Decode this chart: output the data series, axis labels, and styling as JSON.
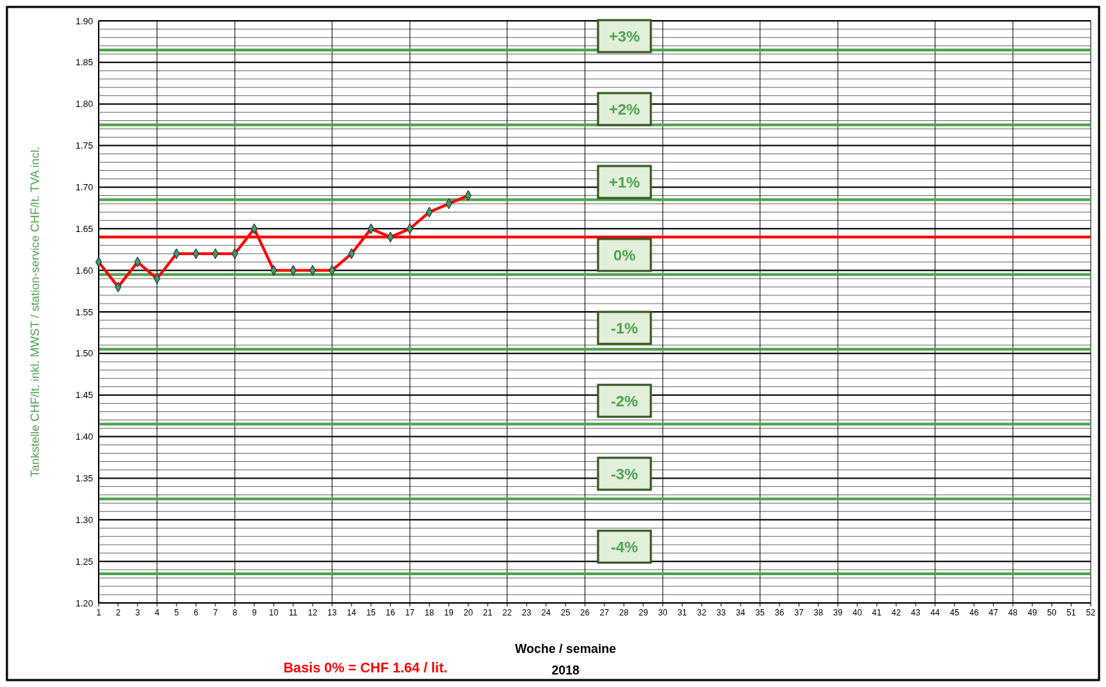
{
  "chart_data": {
    "type": "line",
    "xlabel": "Woche / semaine",
    "ylabel": "Tankstelle CHF/lt. inkl. MWST  /  station-service CHF/lt. TVA incl.",
    "x": [
      1,
      2,
      3,
      4,
      5,
      6,
      7,
      8,
      9,
      10,
      11,
      12,
      13,
      14,
      15,
      16,
      17,
      18,
      19,
      20
    ],
    "series": [
      {
        "color": "#ff0000",
        "colors": [
          "#3c9a6e",
          "#3c9a6e",
          "#3c9a6e",
          "#3c9a6e",
          "#3c9a6e",
          "#3c9a6e",
          "#3c9a6e",
          "#3c9a6e",
          "#3c9a6e",
          "#3c9a6e",
          "#3c9a6e",
          "#3c9a6e",
          "#3c9a6e",
          "#3c9a6e",
          "#3c9a6e",
          "#3c9a6e",
          "#3c9a6e",
          "#3c9a6e",
          "#3c9a6e",
          "#3c9a6e"
        ],
        "values": [
          1.61,
          1.58,
          1.61,
          1.59,
          1.62,
          1.62,
          1.62,
          1.62,
          1.65,
          1.6,
          1.6,
          1.6,
          1.6,
          1.62,
          1.65,
          1.64,
          1.65,
          1.67,
          1.68,
          1.69
        ]
      }
    ],
    "marker": "diamond",
    "line_style": "solid",
    "grid": true,
    "xlim": [
      1,
      52
    ],
    "xticks": [
      1,
      2,
      3,
      4,
      5,
      6,
      7,
      8,
      9,
      10,
      11,
      12,
      13,
      14,
      15,
      16,
      17,
      18,
      19,
      20,
      21,
      22,
      23,
      24,
      25,
      26,
      27,
      28,
      29,
      30,
      31,
      32,
      33,
      34,
      35,
      36,
      37,
      38,
      39,
      40,
      41,
      42,
      43,
      44,
      45,
      46,
      47,
      48,
      49,
      50,
      51,
      52
    ],
    "ylim": [
      1.2,
      1.9
    ],
    "yticks": [
      {
        "value": 1.2,
        "label": "1.20"
      },
      {
        "value": 1.21,
        "label": null
      },
      {
        "value": 1.22,
        "label": null
      },
      {
        "value": 1.23,
        "label": null
      },
      {
        "value": 1.24,
        "label": null
      },
      {
        "value": 1.25,
        "label": "1.25"
      },
      {
        "value": 1.26,
        "label": null
      },
      {
        "value": 1.27,
        "label": null
      },
      {
        "value": 1.28,
        "label": null
      },
      {
        "value": 1.29,
        "label": null
      },
      {
        "value": 1.3,
        "label": "1.30"
      },
      {
        "value": 1.31,
        "label": null
      },
      {
        "value": 1.32,
        "label": null
      },
      {
        "value": 1.33,
        "label": null
      },
      {
        "value": 1.34,
        "label": null
      },
      {
        "value": 1.35,
        "label": "1.35"
      },
      {
        "value": 1.36,
        "label": null
      },
      {
        "value": 1.37,
        "label": null
      },
      {
        "value": 1.38,
        "label": null
      },
      {
        "value": 1.39,
        "label": null
      },
      {
        "value": 1.4,
        "label": "1.40"
      },
      {
        "value": 1.41,
        "label": null
      },
      {
        "value": 1.42,
        "label": null
      },
      {
        "value": 1.43,
        "label": null
      },
      {
        "value": 1.44,
        "label": null
      },
      {
        "value": 1.45,
        "label": "1.45"
      },
      {
        "value": 1.46,
        "label": null
      },
      {
        "value": 1.47,
        "label": null
      },
      {
        "value": 1.48,
        "label": null
      },
      {
        "value": 1.49,
        "label": null
      },
      {
        "value": 1.5,
        "label": "1.50"
      },
      {
        "value": 1.51,
        "label": null
      },
      {
        "value": 1.52,
        "label": null
      },
      {
        "value": 1.53,
        "label": null
      },
      {
        "value": 1.54,
        "label": null
      },
      {
        "value": 1.55,
        "label": "1.55"
      },
      {
        "value": 1.56,
        "label": null
      },
      {
        "value": 1.57,
        "label": null
      },
      {
        "value": 1.58,
        "label": null
      },
      {
        "value": 1.59,
        "label": null
      },
      {
        "value": 1.6,
        "label": "1.60"
      },
      {
        "value": 1.61,
        "label": null
      },
      {
        "value": 1.62,
        "label": null
      },
      {
        "value": 1.63,
        "label": null
      },
      {
        "value": 1.64,
        "label": null
      },
      {
        "value": 1.65,
        "label": "1.65"
      },
      {
        "value": 1.66,
        "label": null
      },
      {
        "value": 1.67,
        "label": null
      },
      {
        "value": 1.68,
        "label": null
      },
      {
        "value": 1.69,
        "label": null
      },
      {
        "value": 1.7,
        "label": "1.70"
      },
      {
        "value": 1.71,
        "label": null
      },
      {
        "value": 1.72,
        "label": null
      },
      {
        "value": 1.73,
        "label": null
      },
      {
        "value": 1.74,
        "label": null
      },
      {
        "value": 1.75,
        "label": "1.75"
      },
      {
        "value": 1.76,
        "label": null
      },
      {
        "value": 1.77,
        "label": null
      },
      {
        "value": 1.78,
        "label": null
      },
      {
        "value": 1.79,
        "label": null
      },
      {
        "value": 1.8,
        "label": "1.80"
      },
      {
        "value": 1.81,
        "label": null
      },
      {
        "value": 1.82,
        "label": null
      },
      {
        "value": 1.83,
        "label": null
      },
      {
        "value": 1.84,
        "label": null
      },
      {
        "value": 1.85,
        "label": "1.85"
      },
      {
        "value": 1.86,
        "label": null
      },
      {
        "value": 1.87,
        "label": null
      },
      {
        "value": 1.88,
        "label": null
      },
      {
        "value": 1.89,
        "label": null
      },
      {
        "value": 1.9,
        "label": "1.90"
      }
    ],
    "ref_lines": [
      {
        "axis": "x",
        "value": 4,
        "color": "#000000"
      },
      {
        "axis": "x",
        "value": 8,
        "color": "#000000"
      },
      {
        "axis": "x",
        "value": 13,
        "color": "#000000"
      },
      {
        "axis": "x",
        "value": 17,
        "color": "#000000"
      },
      {
        "axis": "x",
        "value": 22,
        "color": "#000000"
      },
      {
        "axis": "x",
        "value": 26,
        "color": "#000000"
      },
      {
        "axis": "x",
        "value": 30,
        "color": "#000000"
      },
      {
        "axis": "x",
        "value": 35,
        "color": "#000000"
      },
      {
        "axis": "x",
        "value": 39,
        "color": "#000000"
      },
      {
        "axis": "x",
        "value": 44,
        "color": "#000000"
      },
      {
        "axis": "x",
        "value": 48,
        "color": "#000000"
      },
      {
        "axis": "y",
        "value": 1.865,
        "color": "#4ea34e"
      },
      {
        "axis": "y",
        "value": 1.775,
        "color": "#4ea34e"
      },
      {
        "axis": "y",
        "value": 1.685,
        "color": "#4ea34e"
      },
      {
        "axis": "y",
        "value": 1.64,
        "color": "#ff0000"
      },
      {
        "axis": "y",
        "value": 1.595,
        "color": "#4ea34e"
      },
      {
        "axis": "y",
        "value": 1.505,
        "color": "#4ea34e"
      },
      {
        "axis": "y",
        "value": 1.415,
        "color": "#4ea34e"
      },
      {
        "axis": "y",
        "value": 1.325,
        "color": "#4ea34e"
      },
      {
        "axis": "y",
        "value": 1.235,
        "color": "#4ea34e"
      }
    ],
    "annotations": [
      "Basis 0% = CHF 1.64 / lit.",
      "2018",
      "+3%",
      "+2%",
      "+1%",
      "0%",
      "-1%",
      "-2%",
      "-3%",
      "-4%"
    ]
  }
}
